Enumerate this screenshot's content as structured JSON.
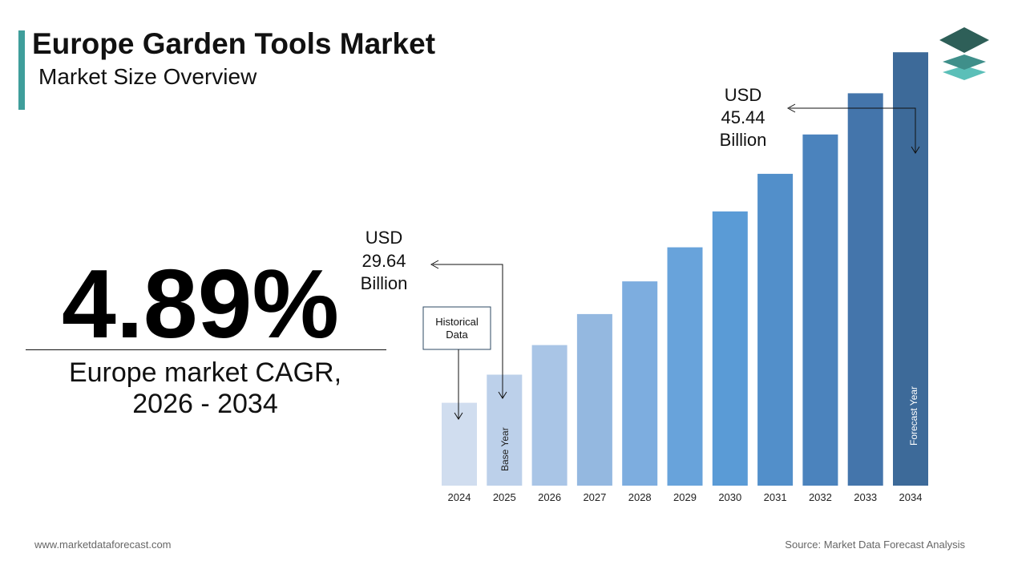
{
  "header": {
    "title": "Europe Garden Tools Market",
    "subtitle": "Market Size Overview"
  },
  "cagr": {
    "value": "4.89%",
    "label_line1": "Europe market CAGR,",
    "label_line2": "2026 - 2034"
  },
  "annotations": {
    "base": [
      "USD",
      "29.64",
      "Billion"
    ],
    "forecast": [
      "USD",
      "45.44",
      "Billion"
    ],
    "historical_box": [
      "Historical",
      "Data"
    ],
    "base_year_label": "Base Year",
    "forecast_year_label": "Forecast Year"
  },
  "footer": {
    "website": "www.marketdataforecast.com",
    "source": "Source: Market Data Forecast Analysis"
  },
  "colors": {
    "accent": "#3f9e9b",
    "bars": [
      "#d0ddef",
      "#bcd0ea",
      "#a9c5e6",
      "#94b8e0",
      "#7daddf",
      "#68a3db",
      "#5a9bd6",
      "#528fca",
      "#4b83bd",
      "#4475ab",
      "#3d6a99"
    ]
  },
  "chart_data": {
    "type": "bar",
    "categories": [
      "2024",
      "2025",
      "2026",
      "2027",
      "2028",
      "2029",
      "2030",
      "2031",
      "2032",
      "2033",
      "2034"
    ],
    "values": [
      28.26,
      29.64,
      31.09,
      32.61,
      34.21,
      35.88,
      37.64,
      39.48,
      41.41,
      43.43,
      45.44
    ],
    "xlabel": "",
    "ylabel": "",
    "ylim": [
      24.2,
      48
    ]
  }
}
